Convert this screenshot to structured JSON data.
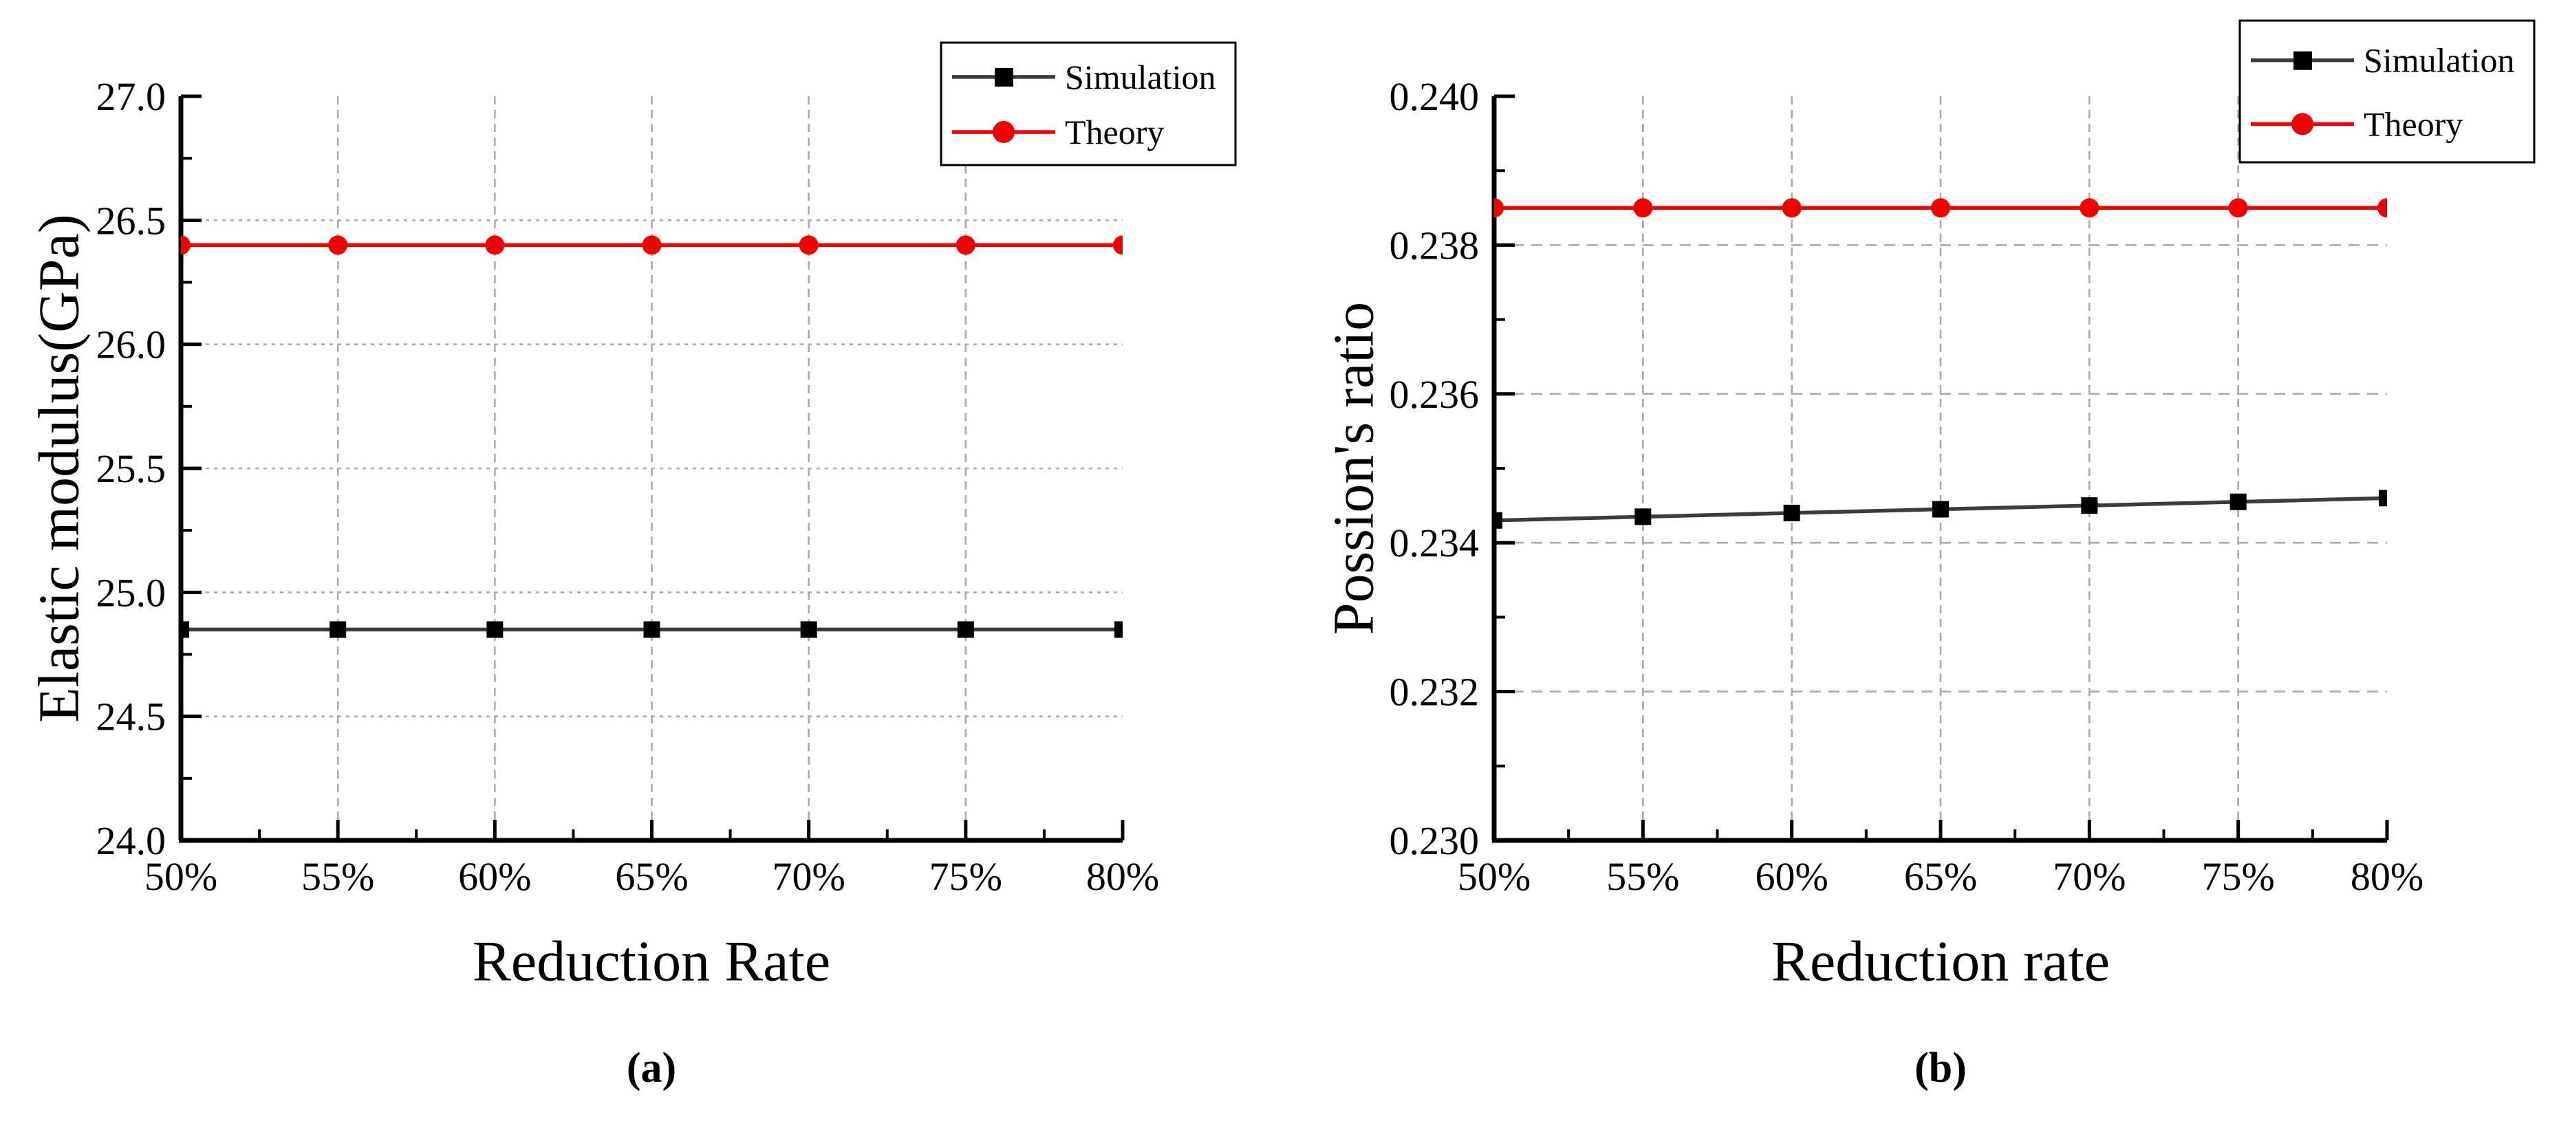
{
  "figure": {
    "background": "#ffffff",
    "legend_labels": [
      "Simulation",
      "Theory"
    ],
    "colors": {
      "simulation_line": "#3C3C3C",
      "simulation_marker": "#000000",
      "theory": "#F20000",
      "grid": "#ABABAB",
      "axis": "#000000"
    }
  },
  "chart_data": [
    {
      "type": "line",
      "panel": "a",
      "caption": "(a)",
      "xlabel": "Reduction Rate",
      "ylabel": "Elastic modulus(GPa)",
      "x_tick_labels": [
        "50%",
        "55%",
        "60%",
        "65%",
        "70%",
        "75%",
        "80%"
      ],
      "x_values": [
        50,
        55,
        60,
        65,
        70,
        75,
        80
      ],
      "xlim": [
        50,
        80
      ],
      "ylim": [
        24.0,
        27.0
      ],
      "y_ticks": [
        24.0,
        24.5,
        25.0,
        25.5,
        26.0,
        26.5,
        27.0
      ],
      "y_tick_labels": [
        "24.0",
        "24.5",
        "25.0",
        "25.5",
        "26.0",
        "26.5",
        "27.0"
      ],
      "grid": true,
      "legend_position": "top-right",
      "series": [
        {
          "name": "Simulation",
          "line_color": "#3C3C3C",
          "marker": "square",
          "marker_color": "#000000",
          "values": [
            24.85,
            24.85,
            24.85,
            24.85,
            24.85,
            24.85,
            24.85
          ]
        },
        {
          "name": "Theory",
          "line_color": "#F20000",
          "marker": "circle",
          "marker_color": "#F20000",
          "values": [
            26.4,
            26.4,
            26.4,
            26.4,
            26.4,
            26.4,
            26.4
          ]
        }
      ]
    },
    {
      "type": "line",
      "panel": "b",
      "caption": "(b)",
      "xlabel": "Reduction rate",
      "ylabel": "Possion's ratio",
      "x_tick_labels": [
        "50%",
        "55%",
        "60%",
        "65%",
        "70%",
        "75%",
        "80%"
      ],
      "x_values": [
        50,
        55,
        60,
        65,
        70,
        75,
        80
      ],
      "xlim": [
        50,
        80
      ],
      "ylim": [
        0.23,
        0.24
      ],
      "y_ticks": [
        0.23,
        0.232,
        0.234,
        0.236,
        0.238,
        0.24
      ],
      "y_tick_labels": [
        "0.230",
        "0.232",
        "0.234",
        "0.236",
        "0.238",
        "0.240"
      ],
      "grid": true,
      "legend_position": "top-right",
      "series": [
        {
          "name": "Simulation",
          "line_color": "#3C3C3C",
          "marker": "square",
          "marker_color": "#000000",
          "values": [
            0.2343,
            0.23435,
            0.2344,
            0.23445,
            0.2345,
            0.23455,
            0.2346
          ]
        },
        {
          "name": "Theory",
          "line_color": "#F20000",
          "marker": "circle",
          "marker_color": "#F20000",
          "values": [
            0.2385,
            0.2385,
            0.2385,
            0.2385,
            0.2385,
            0.2385,
            0.2385
          ]
        }
      ]
    }
  ]
}
